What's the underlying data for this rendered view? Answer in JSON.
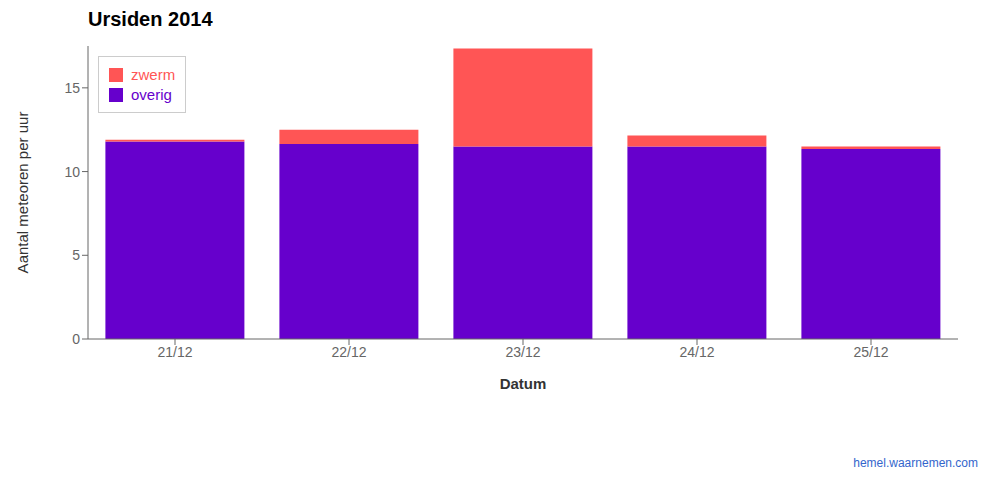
{
  "chart_data": {
    "type": "bar",
    "title": "Ursiden 2014",
    "x_label": "Datum",
    "y_label": "Aantal meteoren per uur",
    "categories": [
      "21/12",
      "22/12",
      "23/12",
      "24/12",
      "25/12"
    ],
    "series": [
      {
        "name": "overig",
        "color": "#6600CC",
        "values": [
          11.8,
          11.65,
          11.5,
          11.5,
          11.35
        ]
      },
      {
        "name": "zwerm",
        "color": "#FF5555",
        "values": [
          0.1,
          0.85,
          5.85,
          0.65,
          0.15
        ]
      }
    ],
    "stacked": true,
    "ylim": [
      0,
      17.5
    ],
    "yticks": [
      0,
      5,
      10,
      15
    ],
    "legend": "upper left",
    "annotations": [
      {
        "text": "hemel.waarnemen.com",
        "color": "#3366CC"
      }
    ]
  }
}
